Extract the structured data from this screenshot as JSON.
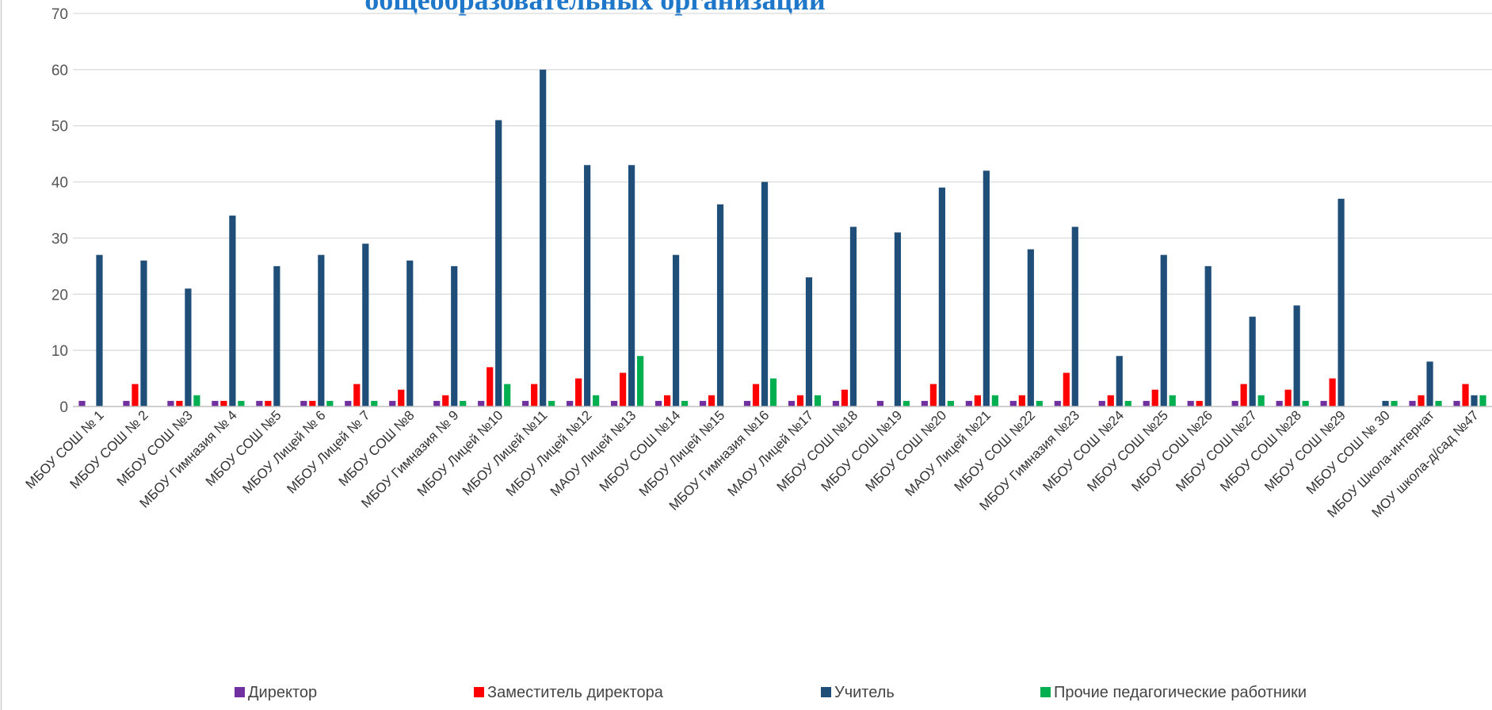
{
  "chart_data": {
    "type": "bar",
    "title": "общеобразовательных организаций",
    "xlabel": "",
    "ylabel": "",
    "ylim": [
      0,
      70
    ],
    "yticks": [
      0,
      10,
      20,
      30,
      40,
      50,
      60,
      70
    ],
    "grid": true,
    "legend_position": "bottom",
    "categories": [
      "МБОУ СОШ № 1",
      "МБОУ СОШ № 2",
      "МБОУ СОШ №3",
      "МБОУ Гимназия № 4",
      "МБОУ СОШ №5",
      "МБОУ Лицей № 6",
      "МБОУ Лицей  № 7",
      "МБОУ СОШ №8",
      "МБОУ Гимназия № 9",
      "МБОУ Лицей №10",
      "МБОУ Лицей №11",
      "МБОУ Лицей №12",
      "МАОУ Лицей №13",
      "МБОУ СОШ №14",
      "МБОУ Лицей №15",
      "МБОУ Гимназия №16",
      "МАОУ Лицей №17",
      "МБОУ СОШ №18",
      "МБОУ СОШ №19",
      "МБОУ СОШ  №20",
      "МАОУ Лицей №21",
      "МБОУ СОШ №22",
      "МБОУ Гимназия №23",
      "МБОУ СОШ №24",
      "МБОУ СОШ №25",
      "МБОУ СОШ №26",
      "МБОУ СОШ №27",
      "МБОУ СОШ №28",
      "МБОУ СОШ №29",
      "МБОУ СОШ № 30",
      "МБОУ Школа-интернат",
      "МОУ  школа-д/сад №47"
    ],
    "series": [
      {
        "name": "Директор",
        "color": "#7030a0",
        "values": [
          1,
          1,
          1,
          1,
          1,
          1,
          1,
          1,
          1,
          1,
          1,
          1,
          1,
          1,
          1,
          1,
          1,
          1,
          1,
          1,
          1,
          1,
          1,
          1,
          1,
          1,
          1,
          1,
          1,
          0,
          1,
          1
        ]
      },
      {
        "name": "Заместитель директора",
        "color": "#ff0000",
        "values": [
          0,
          4,
          1,
          1,
          1,
          1,
          4,
          3,
          2,
          7,
          4,
          5,
          6,
          2,
          2,
          4,
          2,
          3,
          0,
          4,
          2,
          2,
          6,
          2,
          3,
          1,
          4,
          3,
          5,
          0,
          2,
          4
        ]
      },
      {
        "name": "Учитель",
        "color": "#1f4e79",
        "values": [
          27,
          26,
          21,
          34,
          25,
          27,
          29,
          26,
          25,
          51,
          60,
          43,
          43,
          27,
          36,
          40,
          23,
          32,
          31,
          39,
          42,
          28,
          32,
          9,
          27,
          25,
          16,
          18,
          37,
          1,
          8,
          2
        ]
      },
      {
        "name": "Прочие педагогические работники",
        "color": "#00b050",
        "values": [
          0,
          0,
          2,
          1,
          0,
          1,
          1,
          0,
          1,
          4,
          1,
          2,
          9,
          1,
          0,
          5,
          2,
          0,
          1,
          1,
          2,
          1,
          0,
          1,
          2,
          0,
          2,
          1,
          0,
          1,
          1,
          2
        ]
      }
    ]
  }
}
